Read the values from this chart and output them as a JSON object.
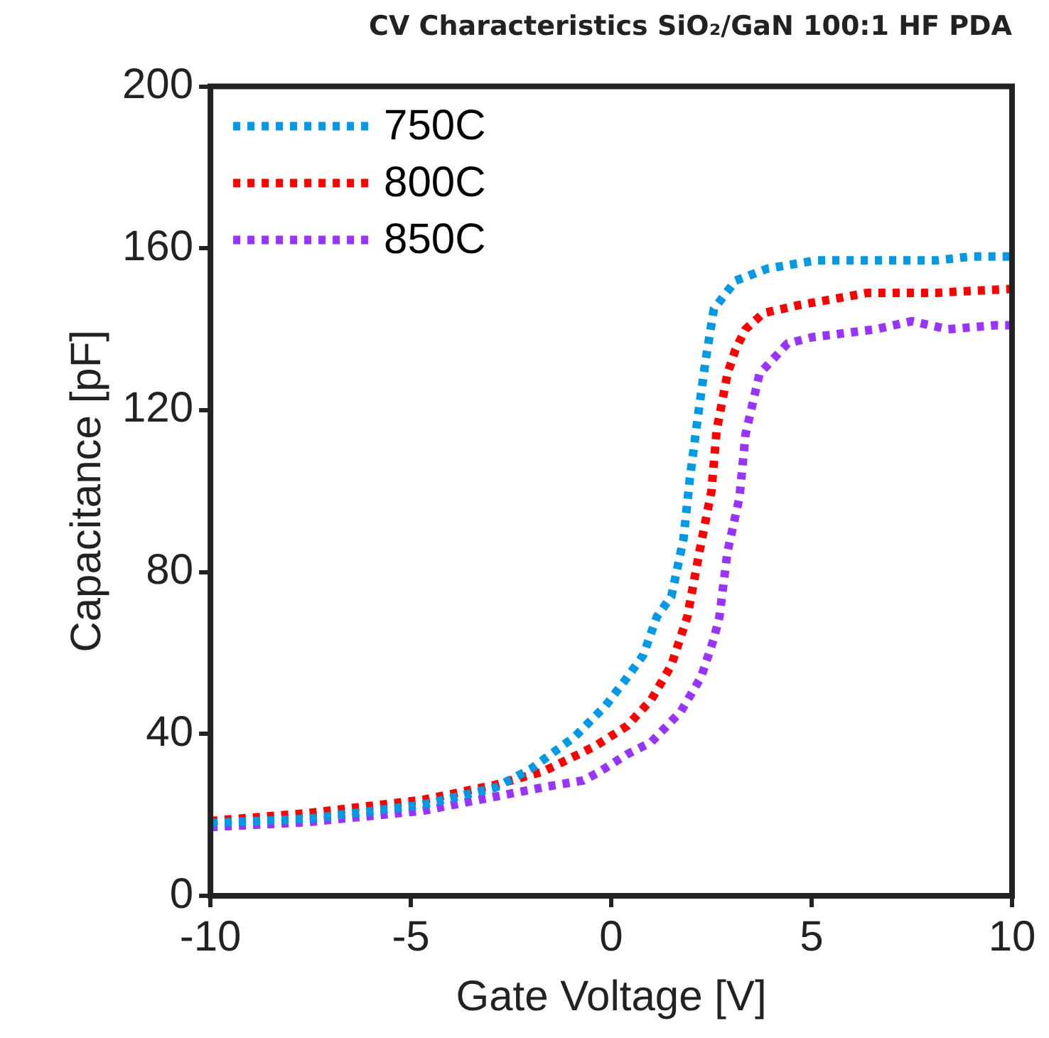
{
  "chart_data": {
    "type": "line",
    "title": "CV Characteristics SiO₂/GaN 100:1 HF PDA",
    "xlabel": "Gate Voltage [V]",
    "ylabel": "Capacitance [pF]",
    "xlim": [
      -10,
      10
    ],
    "xticks": [
      -10,
      -5,
      0,
      5,
      10
    ],
    "ylim": [
      0,
      200
    ],
    "yticks": [
      0,
      40,
      80,
      120,
      160,
      200
    ],
    "legend": "top left",
    "grid": false,
    "marker": "none",
    "line_style": "dotted",
    "series": [
      {
        "name": "750C",
        "color": "#0099e6",
        "x": [
          -10,
          -7.6,
          -4.7,
          -2.9,
          -2,
          -0.9,
          -0.14,
          0.4,
          0.8,
          1.14,
          1.5,
          1.8,
          1.96,
          2.17,
          2.35,
          2.56,
          3.1,
          3.9,
          5.1,
          6,
          8.1,
          9,
          10
        ],
        "values": [
          18,
          19,
          22.5,
          26.7,
          31.4,
          39.4,
          47,
          54,
          59.5,
          69,
          74,
          88,
          103,
          119,
          132,
          145,
          152,
          155,
          157,
          157,
          157,
          158,
          158
        ]
      },
      {
        "name": "800C",
        "color": "#ff0000",
        "x": [
          -10,
          -7.6,
          -4.7,
          -2.9,
          -1.7,
          -0.4,
          0.4,
          1,
          1.5,
          1.9,
          2.2,
          2.5,
          2.63,
          2.9,
          3.1,
          3.35,
          3.8,
          4.7,
          6.4,
          8.1,
          10
        ],
        "values": [
          18.5,
          20.4,
          23.7,
          27.4,
          30.7,
          37,
          42,
          48.5,
          57,
          69,
          85,
          100,
          115,
          129,
          135,
          140,
          144,
          146,
          149,
          149,
          150
        ]
      },
      {
        "name": "850C",
        "color": "#9933ff",
        "x": [
          -10,
          -7.6,
          -4.7,
          -2.9,
          -1.6,
          -0.7,
          -0.3,
          0.4,
          1,
          1.35,
          1.74,
          2.24,
          2.56,
          2.7,
          2.9,
          3.2,
          3.35,
          3.7,
          4.4,
          5,
          5.8,
          6.6,
          7.5,
          8.4,
          9.6,
          10
        ],
        "values": [
          17,
          18.2,
          21,
          24.5,
          27,
          28.5,
          30.6,
          35,
          38,
          41.6,
          45.6,
          54,
          63.5,
          69,
          85,
          98.5,
          114,
          129,
          136.5,
          138,
          139,
          140,
          142,
          140,
          141,
          141
        ]
      }
    ]
  }
}
